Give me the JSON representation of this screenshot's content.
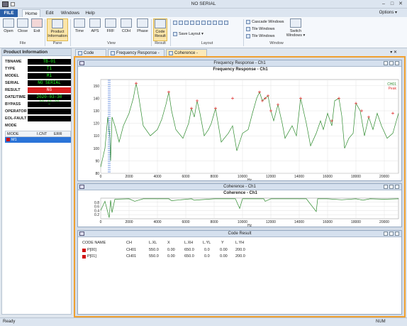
{
  "window": {
    "title": "NO SERIAL",
    "min": "–",
    "max": "□",
    "close": "✕"
  },
  "menu_tabs": {
    "file": "FILE",
    "home": "Home",
    "edit": "Edit",
    "windows": "Windows",
    "help": "Help",
    "options": "Options ▾"
  },
  "ribbon": {
    "open": "Open",
    "close": "Close",
    "exit": "Exit",
    "product_info": "Product\nInformation",
    "time": "Time",
    "aps": "APS",
    "frf": "FRF",
    "coh": "COH",
    "phase": "Phase",
    "code_result": "Code\nResult",
    "save_layout": "Save Layout ▾",
    "cascade": "Cascade Windows",
    "tile": "Tile Windows",
    "tile2": "Tile Windows",
    "switch": "Switch\nWindows ▾",
    "groups": {
      "file": "File",
      "pane": "Pane",
      "view": "View",
      "result": "Result",
      "layout": "Layout",
      "window": "Window"
    }
  },
  "product_info": {
    "header": "Product Information",
    "rows": [
      {
        "key": "TBNAME",
        "value": "TB-01"
      },
      {
        "key": "TYPE",
        "value": "T1"
      },
      {
        "key": "MODEL",
        "value": "M1"
      },
      {
        "key": "SERIAL",
        "value": "NO SERIAL"
      },
      {
        "key": "RESULT",
        "value": "NG"
      },
      {
        "key": "DATE/TIME",
        "value": "2020-03-30 20:40:38"
      },
      {
        "key": "BYPASS",
        "value": "–"
      },
      {
        "key": "OPERATOR",
        "value": ""
      },
      {
        "key": "EOL-FAULT",
        "value": ""
      },
      {
        "key": "MODE",
        "value": ""
      }
    ],
    "mode_table": {
      "headers": [
        "MODE",
        "I.CNT",
        "ERR"
      ],
      "rows": [
        {
          "mode": "M1",
          "cnt": "",
          "err": ""
        }
      ]
    }
  },
  "doc_tabs": [
    "Code Result",
    "Frequency Response - Ch1",
    "Coherence - Ch1"
  ],
  "frf_pane": {
    "header": "Frequency Response - Ch1",
    "title": "Frequency Response - Ch1",
    "legend": [
      "CH01",
      "Peak"
    ],
    "xlabel": "Hz"
  },
  "coh_pane": {
    "header": "Coherence - Ch1",
    "title": "Coherence - Ch1",
    "xlabel": "Hz"
  },
  "code_pane": {
    "header": "Code Result",
    "columns": [
      "CODE NAME",
      "CH",
      "L.XL",
      "X",
      "L.XH",
      "L.YL",
      "Y",
      "L.YH"
    ],
    "rows": [
      [
        "P[00]",
        "CH01",
        "550.0",
        "0.00",
        "650.0",
        "0.0",
        "0.00",
        "200.0"
      ],
      [
        "P[01]",
        "CH01",
        "550.0",
        "0.00",
        "650.0",
        "0.0",
        "0.00",
        "200.0"
      ]
    ]
  },
  "status": {
    "left": "Ready",
    "num": "NUM"
  },
  "colors": {
    "line": "#2e8b2e",
    "peak": "#e03030",
    "accent": "#f0a030",
    "file_tab": "#2a5fa8"
  },
  "chart_data": [
    {
      "type": "line",
      "title": "Frequency Response - Ch1",
      "xlabel": "Hz",
      "ylabel": "",
      "xlim": [
        0,
        21000
      ],
      "ylim": [
        80,
        155
      ],
      "xticks": [
        0,
        2000,
        4000,
        6000,
        8000,
        10000,
        12000,
        14000,
        16000,
        18000,
        20000
      ],
      "yticks": [
        80,
        90,
        100,
        110,
        120,
        130,
        140,
        150
      ],
      "series": [
        {
          "name": "CH01",
          "x": [
            0,
            300,
            500,
            650,
            700,
            800,
            1000,
            1300,
            1600,
            2000,
            2300,
            2500,
            2700,
            3000,
            3500,
            4000,
            4300,
            4600,
            4800,
            5000,
            5300,
            5800,
            6200,
            6400,
            6600,
            6800,
            7000,
            7300,
            7600,
            7800,
            8100,
            8500,
            9000,
            9300,
            9600,
            10000,
            10400,
            10700,
            11000,
            11200,
            11400,
            11600,
            11800,
            12000,
            12200,
            12500,
            12800,
            13000,
            13500,
            13800,
            14100,
            14500,
            14800,
            15200,
            15500,
            15700,
            16000,
            16300,
            16500,
            16800,
            17000,
            17200,
            17500,
            17800,
            18000,
            18300,
            18600,
            18900,
            19200,
            19500,
            19800,
            20200,
            20600,
            21000
          ],
          "y": [
            85,
            100,
            125,
            108,
            90,
            125,
            118,
            105,
            118,
            128,
            140,
            152,
            140,
            118,
            110,
            115,
            123,
            135,
            145,
            130,
            115,
            108,
            120,
            132,
            125,
            138,
            128,
            110,
            115,
            120,
            132,
            105,
            112,
            118,
            98,
            112,
            115,
            128,
            140,
            145,
            138,
            140,
            142,
            130,
            122,
            135,
            120,
            108,
            118,
            110,
            140,
            120,
            102,
            112,
            122,
            115,
            128,
            118,
            138,
            140,
            126,
            100,
            108,
            112,
            136,
            130,
            110,
            125,
            115,
            128,
            118,
            108,
            112,
            128
          ]
        }
      ],
      "peaks_x": [
        2500,
        4800,
        6400,
        6800,
        8100,
        9300,
        11200,
        11400,
        11600,
        11800,
        12000,
        12500,
        14100,
        16300,
        16800,
        18000,
        18400,
        18900,
        20600
      ],
      "peaks_y": [
        152,
        145,
        132,
        138,
        132,
        140,
        145,
        138,
        140,
        142,
        130,
        135,
        140,
        122,
        140,
        136,
        130,
        125,
        128
      ]
    },
    {
      "type": "line",
      "title": "Coherence - Ch1",
      "xlabel": "Hz",
      "ylabel": "",
      "xlim": [
        0,
        21000
      ],
      "ylim": [
        0,
        1
      ],
      "xticks": [
        0,
        2000,
        4000,
        6000,
        8000,
        10000,
        12000,
        14000,
        16000,
        18000,
        20000
      ],
      "yticks": [
        0.2,
        0.4,
        0.6,
        0.8
      ],
      "series": [
        {
          "name": "CH01",
          "x": [
            0,
            300,
            600,
            700,
            800,
            1000,
            2000,
            2400,
            3000,
            4800,
            5000,
            6400,
            6600,
            8000,
            9500,
            9800,
            10000,
            11500,
            11600,
            12000,
            13000,
            14500,
            15200,
            15300,
            16000,
            17000,
            18000,
            18500,
            19000,
            20000,
            21000
          ],
          "y": [
            0.4,
            0.85,
            0.05,
            0.9,
            0.3,
            0.95,
            0.97,
            0.85,
            0.97,
            0.97,
            0.88,
            0.97,
            0.9,
            0.97,
            0.97,
            0.5,
            0.97,
            0.97,
            0.85,
            0.97,
            0.97,
            0.97,
            0.35,
            0.97,
            0.97,
            0.92,
            0.97,
            0.9,
            0.97,
            0.95,
            0.97
          ]
        }
      ]
    }
  ]
}
